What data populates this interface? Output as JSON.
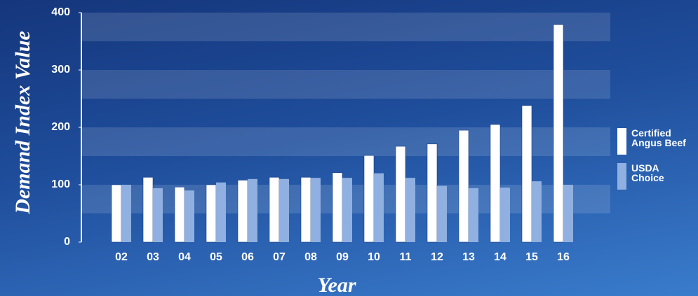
{
  "chart_data": {
    "type": "bar",
    "x_label": "Year",
    "y_label": "Demand Index Value",
    "categories": [
      "02",
      "03",
      "04",
      "05",
      "06",
      "07",
      "08",
      "09",
      "10",
      "11",
      "12",
      "13",
      "14",
      "15",
      "16"
    ],
    "series": [
      {
        "name": "Certified Angus Beef",
        "color": "#ffffff",
        "values": [
          100,
          113,
          96,
          100,
          108,
          113,
          113,
          121,
          151,
          167,
          171,
          195,
          205,
          238,
          379
        ]
      },
      {
        "name": "USDA Choice",
        "color": "#8fb0e0",
        "values": [
          100,
          94,
          90,
          104,
          110,
          110,
          112,
          112,
          120,
          112,
          98,
          94,
          95,
          106,
          100
        ]
      }
    ],
    "ylim": [
      0,
      400
    ],
    "yticks": [
      0,
      100,
      200,
      300,
      400
    ]
  }
}
